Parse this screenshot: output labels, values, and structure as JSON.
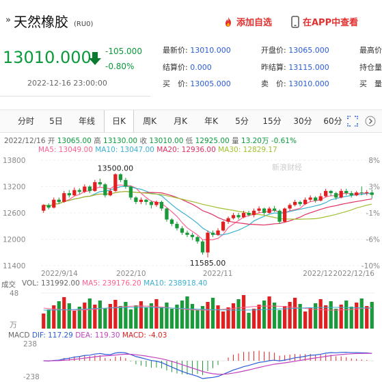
{
  "header": {
    "title": "天然橡胶",
    "code": "(RU0)",
    "add_favorite": "添加自选",
    "app_view": "在APP中查看"
  },
  "quote": {
    "price": "13010.000",
    "change": "-105.000",
    "change_pct": "-0.80%",
    "datetime": "2022-12-16 23:00:00",
    "direction": "down"
  },
  "stats": {
    "latest_label": "最新价:",
    "latest": "13010.000",
    "open_label": "开盘价:",
    "open": "13065.000",
    "high_label": "最高价",
    "settle_label": "结算价:",
    "settle": "0.000",
    "prev_settle_label": "昨结算:",
    "prev_settle": "13115.000",
    "oi_label": "持仓量",
    "bid_label": "买　价:",
    "bid": "13005.000",
    "ask_label": "卖　价:",
    "ask": "13010.000",
    "bid2_label": "买　量"
  },
  "tabs": [
    "分时",
    "5日",
    "年线",
    "日K",
    "周K",
    "月K",
    "年K",
    "5分",
    "15分",
    "30分",
    "60分"
  ],
  "active_tab": "日K",
  "kline_info": {
    "date": "2022/12/16",
    "open_label": "开",
    "open": "13065.00",
    "high_label": "高",
    "high": "13130.00",
    "close_label": "收",
    "close": "13010.00",
    "low_label": "低",
    "low": "12925.00",
    "vol_label": "量",
    "vol": "13.20万",
    "pct": "-0.61%",
    "ma5": "MA5: 13049.00",
    "ma10": "MA10: 13047.00",
    "ma20": "MA20: 12936.00",
    "ma30": "MA30: 12829.17"
  },
  "vol_info": {
    "label": "成交",
    "vol": "VOL: 131992.00",
    "ma5": "MA5: 239176.20",
    "ma10": "MA10: 238918.40",
    "top_tick": "48",
    "unit": "万"
  },
  "macd_info": {
    "label": "MACD",
    "dif": "DIF: 117.29",
    "dea": "DEA: 119.30",
    "macd": "MACD: -4.03",
    "top_tick": "238",
    "bottom_tick": "-238"
  },
  "watermark": "新浪财经",
  "colors": {
    "up": "#e02020",
    "down": "#1a9a3a",
    "ma5": "#ff6090",
    "ma10": "#3ab0d0",
    "ma20": "#e03060",
    "ma30": "#a0c030"
  },
  "chart_data": {
    "type": "candlestick",
    "y_ticks_left": [
      "13800",
      "13200",
      "12600",
      "12000",
      "11400"
    ],
    "y_ticks_right": [
      "8%",
      "3%",
      "-1%",
      "-6%",
      "-10%"
    ],
    "ylim": [
      11400,
      13800
    ],
    "x_labels": [
      "2022/9/14",
      "2022/10",
      "2022/11",
      "2022/12",
      "2022/12/16"
    ],
    "annotations": {
      "high": "13500.00",
      "low": "11585.00"
    },
    "candles": [
      [
        12650,
        12780,
        12600,
        12800
      ],
      [
        12780,
        12720,
        12680,
        12820
      ],
      [
        12720,
        12900,
        12700,
        12950
      ],
      [
        12900,
        12850,
        12800,
        12950
      ],
      [
        12850,
        13050,
        12830,
        13100
      ],
      [
        13050,
        13000,
        12950,
        13120
      ],
      [
        13000,
        13120,
        12980,
        13180
      ],
      [
        13120,
        13080,
        13020,
        13160
      ],
      [
        13080,
        13200,
        13050,
        13250
      ],
      [
        13200,
        13100,
        13050,
        13230
      ],
      [
        13100,
        13300,
        13080,
        13350
      ],
      [
        13300,
        13250,
        13200,
        13380
      ],
      [
        13250,
        13000,
        12950,
        13280
      ],
      [
        13000,
        13100,
        12980,
        13150
      ],
      [
        13100,
        13480,
        13080,
        13500
      ],
      [
        13480,
        13350,
        13300,
        13500
      ],
      [
        13350,
        13200,
        13150,
        13400
      ],
      [
        13200,
        12950,
        12900,
        13220
      ],
      [
        12950,
        12850,
        12800,
        12980
      ],
      [
        12850,
        12900,
        12800,
        12950
      ],
      [
        12900,
        12850,
        12780,
        12920
      ],
      [
        12850,
        12780,
        12700,
        12880
      ],
      [
        12780,
        12850,
        12740,
        12880
      ],
      [
        12850,
        12700,
        12650,
        12880
      ],
      [
        12700,
        12450,
        12400,
        12720
      ],
      [
        12450,
        12350,
        12300,
        12480
      ],
      [
        12350,
        12250,
        12200,
        12400
      ],
      [
        12250,
        12150,
        12100,
        12300
      ],
      [
        12150,
        12100,
        12050,
        12200
      ],
      [
        12100,
        12050,
        11980,
        12150
      ],
      [
        12050,
        11950,
        11900,
        12080
      ],
      [
        11950,
        11700,
        11650,
        11980
      ],
      [
        11700,
        12150,
        11585,
        12200
      ],
      [
        12150,
        12100,
        12050,
        12200
      ],
      [
        12100,
        12200,
        12080,
        12250
      ],
      [
        12200,
        12400,
        12180,
        12420
      ],
      [
        12400,
        12480,
        12350,
        12520
      ],
      [
        12480,
        12550,
        12450,
        12600
      ],
      [
        12550,
        12500,
        12450,
        12600
      ],
      [
        12500,
        12600,
        12480,
        12650
      ],
      [
        12600,
        12550,
        12520,
        12650
      ],
      [
        12550,
        12650,
        12500,
        12700
      ],
      [
        12650,
        12700,
        12600,
        12750
      ],
      [
        12700,
        12600,
        12550,
        12720
      ],
      [
        12600,
        12700,
        12580,
        12740
      ],
      [
        12700,
        12650,
        12620,
        12760
      ],
      [
        12650,
        12400,
        12350,
        12680
      ],
      [
        12400,
        12700,
        12380,
        12720
      ],
      [
        12700,
        12780,
        12650,
        12820
      ],
      [
        12780,
        12850,
        12750,
        12900
      ],
      [
        12850,
        12800,
        12750,
        12880
      ],
      [
        12800,
        12900,
        12780,
        12950
      ],
      [
        12900,
        12950,
        12850,
        13000
      ],
      [
        12950,
        12880,
        12830,
        12980
      ],
      [
        12880,
        12980,
        12860,
        13050
      ],
      [
        12980,
        13100,
        12950,
        13150
      ],
      [
        13100,
        13050,
        12980,
        13120
      ],
      [
        13050,
        12950,
        12900,
        13080
      ],
      [
        12950,
        13100,
        12930,
        13150
      ],
      [
        13100,
        13050,
        13000,
        13150
      ],
      [
        13050,
        13000,
        12950,
        13100
      ],
      [
        13000,
        13065,
        12980,
        13100
      ],
      [
        13065,
        13050,
        13000,
        13200
      ],
      [
        13050,
        13070,
        13000,
        13120
      ],
      [
        13065,
        13010,
        12925,
        13130
      ]
    ]
  }
}
